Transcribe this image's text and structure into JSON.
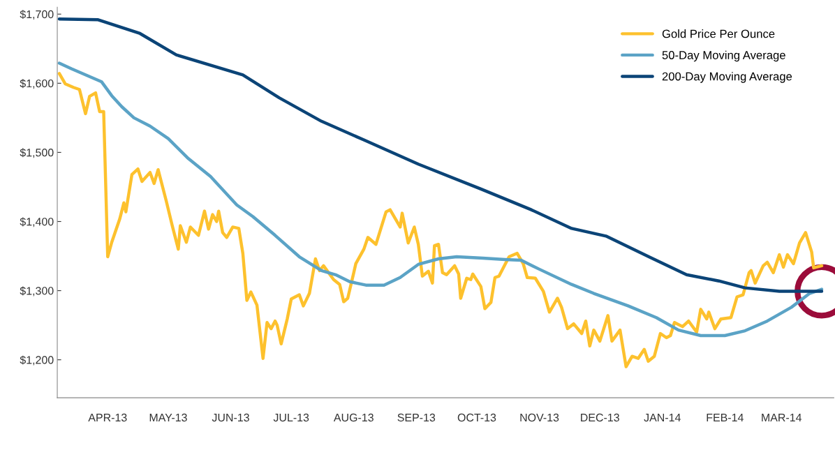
{
  "chart_data": {
    "type": "line",
    "xlim": [
      "2013-03-07",
      "2014-03-27"
    ],
    "xticks": [
      {
        "value": "2013-04-01",
        "label": "APR-13"
      },
      {
        "value": "2013-05-01",
        "label": "MAY-13"
      },
      {
        "value": "2013-06-01",
        "label": "JUN-13"
      },
      {
        "value": "2013-07-01",
        "label": "JUL-13"
      },
      {
        "value": "2013-08-01",
        "label": "AUG-13"
      },
      {
        "value": "2013-09-01",
        "label": "SEP-13"
      },
      {
        "value": "2013-10-01",
        "label": "OCT-13"
      },
      {
        "value": "2013-11-01",
        "label": "NOV-13"
      },
      {
        "value": "2013-12-01",
        "label": "DEC-13"
      },
      {
        "value": "2014-01-01",
        "label": "JAN-14"
      },
      {
        "value": "2014-02-01",
        "label": "FEB-14"
      },
      {
        "value": "2014-03-01",
        "label": "MAR-14"
      }
    ],
    "ylim": [
      1145,
      1710
    ],
    "yticks": [
      {
        "value": 1200,
        "label": "$1,200"
      },
      {
        "value": 1300,
        "label": "$1,300"
      },
      {
        "value": 1400,
        "label": "$1,400"
      },
      {
        "value": 1500,
        "label": "$1,500"
      },
      {
        "value": 1600,
        "label": "$1,600"
      },
      {
        "value": 1700,
        "label": "$1,700"
      }
    ],
    "grid": false,
    "legend": "top right",
    "marker": "none",
    "line_style": "solid",
    "series": [
      {
        "name": "Gold Price Per Ounce",
        "color": "#fdc12d",
        "x": [
          "2013-03-08",
          "2013-03-11",
          "2013-03-15",
          "2013-03-18",
          "2013-03-21",
          "2013-03-23",
          "2013-03-26",
          "2013-03-28",
          "2013-03-30",
          "2013-04-01",
          "2013-04-03",
          "2013-04-07",
          "2013-04-09",
          "2013-04-10",
          "2013-04-13",
          "2013-04-16",
          "2013-04-18",
          "2013-04-22",
          "2013-04-24",
          "2013-04-26",
          "2013-04-30",
          "2013-05-03",
          "2013-05-06",
          "2013-05-07",
          "2013-05-10",
          "2013-05-12",
          "2013-05-16",
          "2013-05-19",
          "2013-05-21",
          "2013-05-23",
          "2013-05-25",
          "2013-05-26",
          "2013-05-28",
          "2013-05-30",
          "2013-06-02",
          "2013-06-05",
          "2013-06-07",
          "2013-06-09",
          "2013-06-11",
          "2013-06-14",
          "2013-06-17",
          "2013-06-19",
          "2013-06-21",
          "2013-06-23",
          "2013-06-24",
          "2013-06-26",
          "2013-06-29",
          "2013-07-01",
          "2013-07-05",
          "2013-07-07",
          "2013-07-10",
          "2013-07-13",
          "2013-07-15",
          "2013-07-17",
          "2013-07-22",
          "2013-07-25",
          "2013-07-27",
          "2013-07-29",
          "2013-08-01",
          "2013-08-02",
          "2013-08-06",
          "2013-08-08",
          "2013-08-12",
          "2013-08-17",
          "2013-08-19",
          "2013-08-24",
          "2013-08-25",
          "2013-08-28",
          "2013-08-31",
          "2013-09-02",
          "2013-09-04",
          "2013-09-07",
          "2013-09-09",
          "2013-09-10",
          "2013-09-12",
          "2013-09-14",
          "2013-09-16",
          "2013-09-20",
          "2013-09-22",
          "2013-09-23",
          "2013-09-26",
          "2013-09-28",
          "2013-09-29",
          "2013-10-03",
          "2013-10-05",
          "2013-10-08",
          "2013-10-10",
          "2013-10-12",
          "2013-10-15",
          "2013-10-17",
          "2013-10-21",
          "2013-10-24",
          "2013-10-26",
          "2013-10-30",
          "2013-11-03",
          "2013-11-06",
          "2013-11-10",
          "2013-11-12",
          "2013-11-15",
          "2013-11-18",
          "2013-11-22",
          "2013-11-24",
          "2013-11-26",
          "2013-11-28",
          "2013-12-01",
          "2013-12-05",
          "2013-12-07",
          "2013-12-11",
          "2013-12-14",
          "2013-12-17",
          "2013-12-20",
          "2013-12-23",
          "2013-12-25",
          "2013-12-28",
          "2013-12-31",
          "2014-01-03",
          "2014-01-05",
          "2014-01-07",
          "2014-01-11",
          "2014-01-14",
          "2014-01-18",
          "2014-01-20",
          "2014-01-23",
          "2014-01-24",
          "2014-01-27",
          "2014-01-30",
          "2014-02-04",
          "2014-02-07",
          "2014-02-10",
          "2014-02-13",
          "2014-02-14",
          "2014-02-16",
          "2014-02-20",
          "2014-02-22",
          "2014-02-25",
          "2014-02-28",
          "2014-03-02",
          "2014-03-04",
          "2014-03-07",
          "2014-03-10",
          "2014-03-13",
          "2014-03-16",
          "2014-03-17",
          "2014-03-21"
        ],
        "values": [
          1614,
          1599,
          1594,
          1591,
          1556,
          1581,
          1586,
          1559,
          1559,
          1349,
          1370,
          1404,
          1427,
          1414,
          1468,
          1476,
          1458,
          1471,
          1455,
          1475,
          1430,
          1394,
          1360,
          1394,
          1370,
          1392,
          1380,
          1415,
          1389,
          1410,
          1400,
          1415,
          1384,
          1377,
          1392,
          1390,
          1354,
          1286,
          1298,
          1279,
          1202,
          1254,
          1245,
          1256,
          1250,
          1223,
          1259,
          1288,
          1294,
          1278,
          1296,
          1346,
          1329,
          1336,
          1316,
          1309,
          1284,
          1289,
          1326,
          1339,
          1360,
          1377,
          1367,
          1414,
          1417,
          1392,
          1412,
          1369,
          1392,
          1367,
          1321,
          1328,
          1311,
          1365,
          1367,
          1326,
          1323,
          1336,
          1324,
          1289,
          1318,
          1316,
          1324,
          1306,
          1274,
          1283,
          1319,
          1321,
          1338,
          1349,
          1354,
          1339,
          1319,
          1318,
          1299,
          1269,
          1289,
          1276,
          1245,
          1252,
          1238,
          1256,
          1220,
          1243,
          1227,
          1264,
          1227,
          1243,
          1190,
          1205,
          1202,
          1215,
          1198,
          1205,
          1238,
          1232,
          1235,
          1254,
          1248,
          1256,
          1240,
          1273,
          1259,
          1269,
          1245,
          1259,
          1261,
          1291,
          1294,
          1326,
          1329,
          1311,
          1336,
          1341,
          1326,
          1352,
          1334,
          1352,
          1339,
          1369,
          1384,
          1356,
          1333,
          1336
        ]
      },
      {
        "name": "50-Day Moving Average",
        "color": "#5ba3c6",
        "x": [
          "2013-03-08",
          "2013-03-14",
          "2013-03-22",
          "2013-03-29",
          "2013-04-03",
          "2013-04-08",
          "2013-04-14",
          "2013-04-22",
          "2013-05-01",
          "2013-05-11",
          "2013-05-22",
          "2013-06-04",
          "2013-06-12",
          "2013-06-23",
          "2013-07-05",
          "2013-07-16",
          "2013-07-23",
          "2013-07-30",
          "2013-08-07",
          "2013-08-16",
          "2013-08-24",
          "2013-09-02",
          "2013-09-12",
          "2013-09-21",
          "2013-10-04",
          "2013-10-15",
          "2013-10-23",
          "2013-11-01",
          "2013-11-17",
          "2013-11-28",
          "2013-12-15",
          "2013-12-29",
          "2014-01-09",
          "2014-01-20",
          "2014-02-01",
          "2014-02-11",
          "2014-02-22",
          "2014-03-06",
          "2014-03-15",
          "2014-03-21"
        ],
        "values": [
          1629,
          1621,
          1611,
          1602,
          1582,
          1566,
          1550,
          1538,
          1520,
          1491,
          1465,
          1424,
          1407,
          1380,
          1349,
          1329,
          1323,
          1313,
          1308,
          1308,
          1319,
          1338,
          1346,
          1349,
          1347,
          1345,
          1344,
          1331,
          1309,
          1296,
          1278,
          1261,
          1243,
          1235,
          1235,
          1242,
          1256,
          1276,
          1296,
          1302
        ]
      },
      {
        "name": "200-Day Moving Average",
        "color": "#0b4477",
        "x": [
          "2013-03-08",
          "2013-03-27",
          "2013-04-17",
          "2013-05-05",
          "2013-06-07",
          "2013-06-25",
          "2013-07-16",
          "2013-08-06",
          "2013-09-02",
          "2013-10-03",
          "2013-10-28",
          "2013-11-17",
          "2013-12-04",
          "2013-12-26",
          "2014-01-13",
          "2014-01-29",
          "2014-02-11",
          "2014-02-28",
          "2014-03-21"
        ],
        "values": [
          1693,
          1692,
          1672,
          1641,
          1612,
          1579,
          1545,
          1518,
          1483,
          1447,
          1417,
          1390,
          1379,
          1348,
          1323,
          1314,
          1304,
          1299,
          1299
        ]
      }
    ]
  }
}
